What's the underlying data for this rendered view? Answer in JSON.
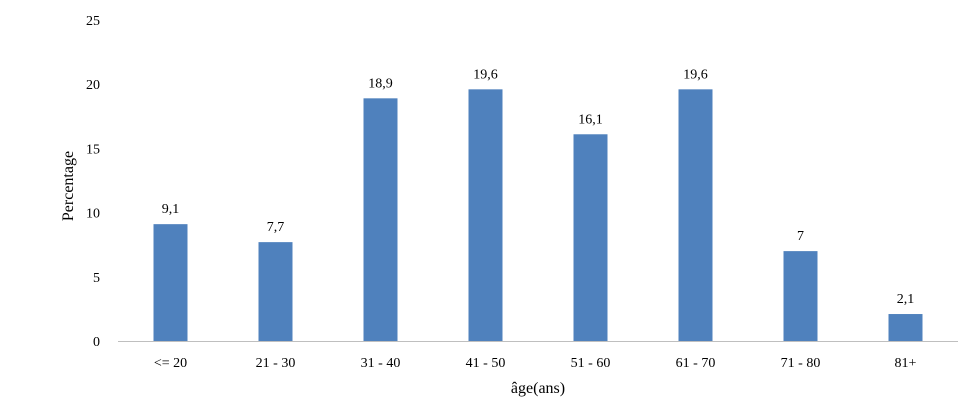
{
  "chart_data": {
    "type": "bar",
    "title": "",
    "xlabel": "âge(ans)",
    "ylabel": "Percentage",
    "categories": [
      "<= 20",
      "21 - 30",
      "31 - 40",
      "41 - 50",
      "51 - 60",
      "61 - 70",
      "71 - 80",
      "81+"
    ],
    "values": [
      9.1,
      7.7,
      18.9,
      19.6,
      16.1,
      19.6,
      7,
      2.1
    ],
    "value_labels": [
      "9,1",
      "7,7",
      "18,9",
      "19,6",
      "16,1",
      "19,6",
      "7",
      "2,1"
    ],
    "ylim": [
      0,
      25
    ],
    "yticks": [
      0,
      5,
      10,
      15,
      20,
      25
    ],
    "ytick_labels": [
      "0",
      "5",
      "10",
      "15",
      "20",
      "25"
    ],
    "grid": false,
    "legend": "none",
    "bar_color": "#4f81bd",
    "axis_color": "#bfbfbf"
  }
}
